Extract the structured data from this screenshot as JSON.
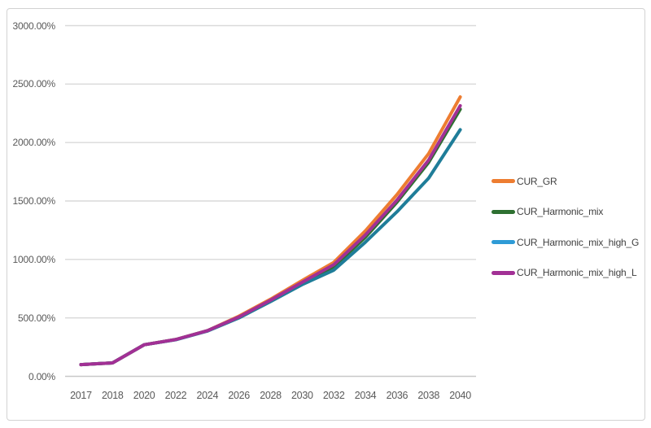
{
  "colors": {
    "background": "#ffffff",
    "frame_border": "#d2d2d2",
    "gridline": "#d9d9d9",
    "baseline": "#c8c8c8",
    "axis_text": "#595959",
    "legend_text": "#404040"
  },
  "chart_data": {
    "type": "line",
    "title": "",
    "xlabel": "",
    "ylabel": "",
    "grid": true,
    "legend_position": "right",
    "ylim": [
      0,
      3000
    ],
    "ytick_step": 500,
    "ytick_labels": [
      "3000.00%",
      "2500.00%",
      "2000.00%",
      "1500.00%",
      "1000.00%",
      "500.00%",
      "0.00%"
    ],
    "categories": [
      "2017",
      "2018",
      "2020",
      "2022",
      "2024",
      "2026",
      "2028",
      "2030",
      "2032",
      "2034",
      "2036",
      "2038",
      "2040"
    ],
    "series": [
      {
        "name": "CUR_GR",
        "color": "#ED7D31",
        "line_color": "#ED7D31",
        "values": [
          100,
          115,
          270,
          315,
          390,
          515,
          660,
          820,
          975,
          1245,
          1555,
          1905,
          2390
        ]
      },
      {
        "name": "CUR_Harmonic_mix",
        "color": "#2E7031",
        "line_color": "#2E7031",
        "values": [
          100,
          115,
          270,
          315,
          390,
          505,
          648,
          798,
          938,
          1190,
          1490,
          1830,
          2285
        ]
      },
      {
        "name": "CUR_Harmonic_mix_high_G",
        "color": "#2E9BD6",
        "line_color": "#1F7D99",
        "values": [
          100,
          115,
          270,
          313,
          387,
          500,
          640,
          785,
          908,
          1148,
          1408,
          1695,
          2110
        ]
      },
      {
        "name": "CUR_Harmonic_mix_high_L",
        "color": "#A23095",
        "line_color": "#A23095",
        "values": [
          100,
          115,
          270,
          315,
          390,
          508,
          652,
          805,
          955,
          1210,
          1508,
          1850,
          2315
        ]
      }
    ]
  }
}
